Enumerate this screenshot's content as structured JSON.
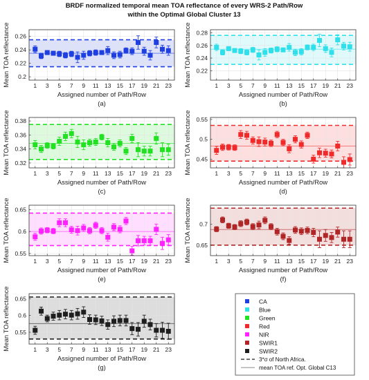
{
  "figure": {
    "title_line1": "BRDF normalized temporal mean TOA reflectance of every WRS-2 Path/Row",
    "title_line2": "within the Optimal Global Cluster 13"
  },
  "chart_data": [
    {
      "type": "scatter",
      "panel_label": "(a)",
      "band": "CA",
      "color": "#1f3fe0",
      "xlabel": "Assigned number of Path/Row",
      "ylabel": "Mean TOA reflectance",
      "xlim": [
        0,
        24
      ],
      "ylim": [
        0.195,
        0.27
      ],
      "xticks": [
        1,
        3,
        5,
        7,
        9,
        11,
        13,
        15,
        17,
        19,
        21,
        23
      ],
      "yticks": [
        0.2,
        0.22,
        0.24,
        0.26
      ],
      "ytick_labels": [
        "0.2",
        "0.22",
        "0.24",
        "0.26"
      ],
      "x": [
        1,
        2,
        3,
        4,
        5,
        6,
        7,
        8,
        9,
        10,
        11,
        12,
        13,
        14,
        15,
        16,
        17,
        18,
        19,
        20,
        21,
        22,
        23
      ],
      "y": [
        0.241,
        0.231,
        0.236,
        0.235,
        0.234,
        0.232,
        0.234,
        0.229,
        0.232,
        0.235,
        0.236,
        0.236,
        0.239,
        0.232,
        0.233,
        0.239,
        0.238,
        0.251,
        0.238,
        0.232,
        0.251,
        0.241,
        0.239
      ],
      "err": [
        0.005,
        0.004,
        0.003,
        0.003,
        0.004,
        0.004,
        0.004,
        0.008,
        0.006,
        0.004,
        0.004,
        0.003,
        0.006,
        0.005,
        0.005,
        0.004,
        0.005,
        0.01,
        0.006,
        0.007,
        0.008,
        0.006,
        0.007
      ],
      "mean": 0.235,
      "band_low": 0.215,
      "band_high": 0.255
    },
    {
      "type": "scatter",
      "panel_label": "(b)",
      "band": "Blue",
      "color": "#2fe0ea",
      "xlabel": "Assigned number of Path/Row",
      "ylabel": "Mean TOA reflectance",
      "xlim": [
        0,
        24
      ],
      "ylim": [
        0.205,
        0.285
      ],
      "xticks": [
        1,
        3,
        5,
        7,
        9,
        11,
        13,
        15,
        17,
        19,
        21,
        23
      ],
      "yticks": [
        0.22,
        0.24,
        0.26,
        0.28
      ],
      "ytick_labels": [
        "0.22",
        "0.24",
        "0.26",
        "0.28"
      ],
      "x": [
        1,
        2,
        3,
        4,
        5,
        6,
        7,
        8,
        9,
        10,
        11,
        12,
        13,
        14,
        15,
        16,
        17,
        18,
        19,
        20,
        21,
        22,
        23
      ],
      "y": [
        0.257,
        0.249,
        0.255,
        0.252,
        0.251,
        0.249,
        0.253,
        0.245,
        0.249,
        0.252,
        0.254,
        0.253,
        0.257,
        0.249,
        0.25,
        0.257,
        0.257,
        0.268,
        0.255,
        0.249,
        0.269,
        0.259,
        0.258
      ],
      "err": [
        0.005,
        0.004,
        0.003,
        0.003,
        0.004,
        0.004,
        0.004,
        0.008,
        0.006,
        0.004,
        0.004,
        0.003,
        0.006,
        0.005,
        0.005,
        0.004,
        0.005,
        0.01,
        0.006,
        0.007,
        0.008,
        0.006,
        0.007
      ],
      "mean": 0.254,
      "band_low": 0.23,
      "band_high": 0.276
    },
    {
      "type": "scatter",
      "panel_label": "(c)",
      "band": "Green",
      "color": "#22e022",
      "xlabel": "Assigned number of Path/Row",
      "ylabel": "Mean TOA reflectance",
      "xlim": [
        0,
        24
      ],
      "ylim": [
        0.313,
        0.385
      ],
      "xticks": [
        1,
        3,
        5,
        7,
        9,
        11,
        13,
        15,
        17,
        19,
        21,
        23
      ],
      "yticks": [
        0.32,
        0.34,
        0.36,
        0.38
      ],
      "ytick_labels": [
        "0.32",
        "0.34",
        "0.36",
        "0.38"
      ],
      "x": [
        1,
        2,
        3,
        4,
        5,
        6,
        7,
        8,
        9,
        10,
        11,
        12,
        13,
        14,
        15,
        16,
        17,
        18,
        19,
        20,
        21,
        22,
        23
      ],
      "y": [
        0.346,
        0.34,
        0.345,
        0.344,
        0.351,
        0.358,
        0.362,
        0.35,
        0.346,
        0.349,
        0.35,
        0.357,
        0.349,
        0.343,
        0.348,
        0.337,
        0.355,
        0.339,
        0.337,
        0.337,
        0.355,
        0.339,
        0.339
      ],
      "err": [
        0.006,
        0.005,
        0.004,
        0.004,
        0.006,
        0.006,
        0.006,
        0.008,
        0.007,
        0.005,
        0.005,
        0.004,
        0.006,
        0.005,
        0.005,
        0.005,
        0.006,
        0.01,
        0.007,
        0.007,
        0.008,
        0.01,
        0.008
      ],
      "mean": 0.348,
      "band_low": 0.325,
      "band_high": 0.375
    },
    {
      "type": "scatter",
      "panel_label": "(d)",
      "band": "Red",
      "color": "#f02a2a",
      "xlabel": "Assigned number of Path/Row",
      "ylabel": "Mean TOA reflectance",
      "xlim": [
        0,
        24
      ],
      "ylim": [
        0.428,
        0.555
      ],
      "xticks": [
        1,
        3,
        5,
        7,
        9,
        11,
        13,
        15,
        17,
        19,
        21,
        23
      ],
      "yticks": [
        0.45,
        0.5,
        0.55
      ],
      "ytick_labels": [
        "0.45",
        "0.5",
        "0.55"
      ],
      "x": [
        1,
        2,
        3,
        4,
        5,
        6,
        7,
        8,
        9,
        10,
        11,
        12,
        13,
        14,
        15,
        16,
        17,
        18,
        19,
        20,
        21,
        22,
        23
      ],
      "y": [
        0.472,
        0.48,
        0.48,
        0.479,
        0.512,
        0.51,
        0.497,
        0.494,
        0.493,
        0.49,
        0.512,
        0.492,
        0.476,
        0.5,
        0.487,
        0.51,
        0.45,
        0.466,
        0.465,
        0.463,
        0.483,
        0.442,
        0.449
      ],
      "err": [
        0.01,
        0.008,
        0.007,
        0.007,
        0.01,
        0.01,
        0.009,
        0.012,
        0.01,
        0.008,
        0.008,
        0.008,
        0.01,
        0.009,
        0.009,
        0.008,
        0.01,
        0.012,
        0.01,
        0.01,
        0.012,
        0.014,
        0.014
      ],
      "mean": 0.483,
      "band_low": 0.445,
      "band_high": 0.535
    },
    {
      "type": "scatter",
      "panel_label": "(e)",
      "band": "NIR",
      "color": "#ff22ff",
      "xlabel": "Assigned number of Path/Row",
      "ylabel": "Mean TOA reflectance",
      "xlim": [
        0,
        24
      ],
      "ylim": [
        0.545,
        0.66
      ],
      "xticks": [
        1,
        3,
        5,
        7,
        9,
        11,
        13,
        15,
        17,
        19,
        21,
        23
      ],
      "yticks": [
        0.55,
        0.6,
        0.65
      ],
      "ytick_labels": [
        "0.55",
        "0.6",
        "0.65"
      ],
      "x": [
        1,
        2,
        3,
        4,
        5,
        6,
        7,
        8,
        9,
        10,
        11,
        12,
        13,
        14,
        15,
        16,
        17,
        18,
        19,
        20,
        21,
        22,
        23
      ],
      "y": [
        0.588,
        0.601,
        0.603,
        0.601,
        0.62,
        0.62,
        0.604,
        0.602,
        0.608,
        0.602,
        0.614,
        0.602,
        0.587,
        0.61,
        0.605,
        0.624,
        0.556,
        0.579,
        0.579,
        0.579,
        0.605,
        0.573,
        0.581
      ],
      "err": [
        0.008,
        0.007,
        0.006,
        0.006,
        0.009,
        0.009,
        0.008,
        0.01,
        0.008,
        0.007,
        0.007,
        0.007,
        0.009,
        0.008,
        0.008,
        0.008,
        0.01,
        0.012,
        0.01,
        0.01,
        0.012,
        0.014,
        0.012
      ],
      "mean": 0.6,
      "band_low": 0.568,
      "band_high": 0.642
    },
    {
      "type": "scatter",
      "panel_label": "(f)",
      "band": "SWIR1",
      "color": "#b02525",
      "xlabel": "Assigned number of Path/Row",
      "ylabel": "Mean TOA reflectance",
      "xlim": [
        0,
        24
      ],
      "ylim": [
        0.625,
        0.745
      ],
      "xticks": [
        1,
        3,
        5,
        7,
        9,
        11,
        13,
        15,
        17,
        19,
        21,
        23
      ],
      "yticks": [
        0.65,
        0.7
      ],
      "ytick_labels": [
        "0.65",
        "0.7"
      ],
      "x": [
        1,
        2,
        3,
        4,
        5,
        6,
        7,
        8,
        9,
        10,
        11,
        12,
        13,
        14,
        15,
        16,
        17,
        18,
        19,
        20,
        21,
        22,
        23
      ],
      "y": [
        0.688,
        0.71,
        0.696,
        0.693,
        0.701,
        0.705,
        0.694,
        0.698,
        0.709,
        0.694,
        0.682,
        0.671,
        0.661,
        0.686,
        0.683,
        0.685,
        0.68,
        0.664,
        0.673,
        0.668,
        0.681,
        0.664,
        0.664
      ],
      "err": [
        0.006,
        0.007,
        0.006,
        0.006,
        0.007,
        0.007,
        0.007,
        0.009,
        0.008,
        0.007,
        0.008,
        0.008,
        0.009,
        0.008,
        0.008,
        0.008,
        0.01,
        0.02,
        0.014,
        0.012,
        0.012,
        0.02,
        0.02
      ],
      "mean": 0.687,
      "band_low": 0.65,
      "band_high": 0.738
    },
    {
      "type": "scatter",
      "panel_label": "(g)",
      "band": "SWIR2",
      "color": "#1e1e1e",
      "xlabel": "Assigned number of Path/Row",
      "ylabel": "Mean TOA reflectance",
      "xlim": [
        0,
        24
      ],
      "ylim": [
        0.515,
        0.665
      ],
      "xticks": [
        1,
        3,
        5,
        7,
        9,
        11,
        13,
        15,
        17,
        19,
        21,
        23
      ],
      "yticks": [
        0.55,
        0.6,
        0.65
      ],
      "ytick_labels": [
        "0.55",
        "0.6",
        "0.65"
      ],
      "x": [
        1,
        2,
        3,
        4,
        5,
        6,
        7,
        8,
        9,
        10,
        11,
        12,
        13,
        14,
        15,
        16,
        17,
        18,
        19,
        20,
        21,
        22,
        23
      ],
      "y": [
        0.556,
        0.613,
        0.591,
        0.598,
        0.601,
        0.604,
        0.601,
        0.605,
        0.61,
        0.588,
        0.587,
        0.584,
        0.573,
        0.583,
        0.585,
        0.585,
        0.561,
        0.559,
        0.583,
        0.573,
        0.556,
        0.556,
        0.553
      ],
      "err": [
        0.012,
        0.012,
        0.01,
        0.012,
        0.014,
        0.014,
        0.014,
        0.016,
        0.016,
        0.014,
        0.014,
        0.014,
        0.014,
        0.016,
        0.016,
        0.016,
        0.018,
        0.02,
        0.018,
        0.016,
        0.02,
        0.024,
        0.024
      ],
      "mean": 0.576,
      "band_low": 0.53,
      "band_high": 0.655
    }
  ],
  "legend": {
    "items": [
      {
        "label": "CA",
        "color": "#1f3fe0"
      },
      {
        "label": "Blue",
        "color": "#2fe0ea"
      },
      {
        "label": "Green",
        "color": "#22e022"
      },
      {
        "label": "Red",
        "color": "#f02a2a"
      },
      {
        "label": "NIR",
        "color": "#ff22ff"
      },
      {
        "label": "SWIR1",
        "color": "#b02525"
      },
      {
        "label": "SWIR2",
        "color": "#1e1e1e"
      }
    ],
    "sigma_label": "3*σ of North Africa.",
    "mean_label": "mean TOA ref. Opt. Global C13"
  }
}
